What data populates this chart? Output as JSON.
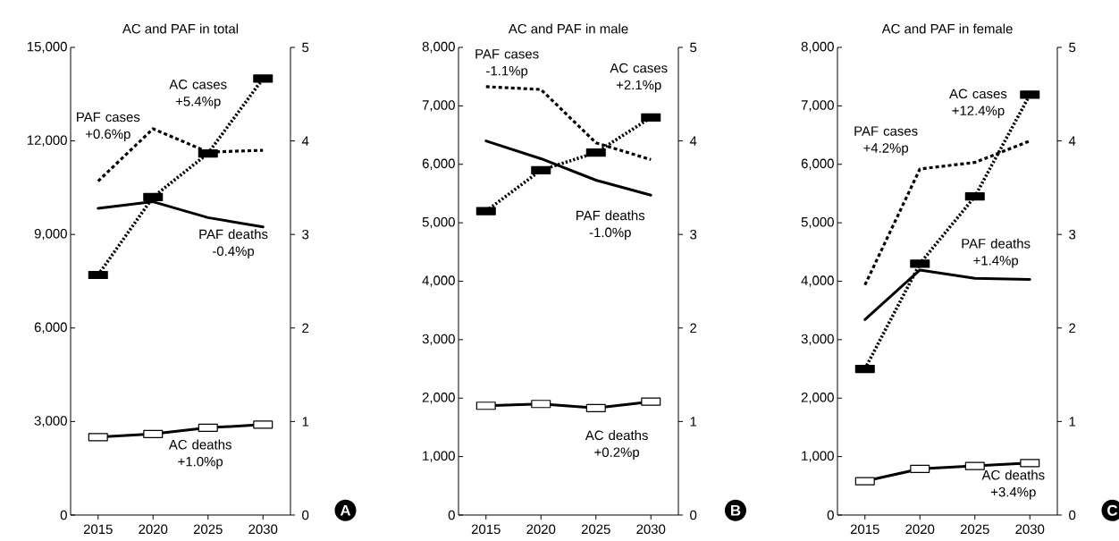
{
  "chart_data": [
    {
      "type": "line",
      "title": "AC and PAF in total",
      "categories": [
        "2015",
        "2020",
        "2025",
        "2030"
      ],
      "ylim": [
        0,
        15000
      ],
      "yticks": [
        {
          "value": 0,
          "label": "0"
        },
        {
          "value": 3000,
          "label": "3,000"
        },
        {
          "value": 6000,
          "label": "6,000"
        },
        {
          "value": 9000,
          "label": "9,000"
        },
        {
          "value": 12000,
          "label": "12,000"
        },
        {
          "value": 15000,
          "label": "15,000"
        }
      ],
      "y2lim": [
        0,
        5
      ],
      "y2ticks": [
        0,
        1,
        2,
        3,
        4,
        5
      ],
      "series": [
        {
          "color": "#000000",
          "values": [
            7700,
            10200,
            11600,
            14000
          ],
          "line_style": "dotted",
          "marker": "square"
        },
        {
          "color": "#000000",
          "values": [
            2500,
            2600,
            2800,
            2900
          ],
          "line_style": "solid",
          "marker": "square"
        },
        {
          "color": "#000000",
          "values": [
            3.57,
            4.13,
            3.88,
            3.9
          ],
          "line_style": "dashed",
          "marker": "none",
          "axis": "y2"
        },
        {
          "color": "#000000",
          "values": [
            3.28,
            3.35,
            3.18,
            3.08
          ],
          "line_style": "solid",
          "marker": "none",
          "axis": "y2"
        }
      ],
      "annotations": [
        "AC cases +5.4%p",
        "PAF cases +0.6%p",
        "PAF deaths -0.4%p",
        "AC deaths +1.0%p",
        "A"
      ]
    },
    {
      "type": "line",
      "title": "AC and PAF in male",
      "categories": [
        "2015",
        "2020",
        "2025",
        "2030"
      ],
      "ylim": [
        0,
        8000
      ],
      "yticks": [
        {
          "value": 0,
          "label": "0"
        },
        {
          "value": 1000,
          "label": "1,000"
        },
        {
          "value": 2000,
          "label": "2,000"
        },
        {
          "value": 3000,
          "label": "3,000"
        },
        {
          "value": 4000,
          "label": "4,000"
        },
        {
          "value": 5000,
          "label": "5,000"
        },
        {
          "value": 6000,
          "label": "6,000"
        },
        {
          "value": 7000,
          "label": "7,000"
        },
        {
          "value": 8000,
          "label": "8,000"
        }
      ],
      "y2lim": [
        0,
        5
      ],
      "y2ticks": [
        0,
        1,
        2,
        3,
        4,
        5
      ],
      "series": [
        {
          "color": "#000000",
          "values": [
            5200,
            5900,
            6200,
            6800
          ],
          "line_style": "dotted",
          "marker": "square"
        },
        {
          "color": "#000000",
          "values": [
            1870,
            1900,
            1830,
            1940
          ],
          "line_style": "solid",
          "marker": "square"
        },
        {
          "color": "#000000",
          "values": [
            4.58,
            4.55,
            3.98,
            3.8
          ],
          "line_style": "dashed",
          "marker": "none",
          "axis": "y2"
        },
        {
          "color": "#000000",
          "values": [
            4.0,
            3.81,
            3.58,
            3.42
          ],
          "line_style": "solid",
          "marker": "none",
          "axis": "y2"
        }
      ],
      "annotations": [
        "PAF cases -1.1%p",
        "AC cases +2.1%p",
        "PAF deaths -1.0%p",
        "AC deaths +0.2%p",
        "B"
      ]
    },
    {
      "type": "line",
      "title": "AC and PAF in female",
      "categories": [
        "2015",
        "2020",
        "2025",
        "2030"
      ],
      "ylim": [
        0,
        8000
      ],
      "yticks": [
        {
          "value": 0,
          "label": "0"
        },
        {
          "value": 1000,
          "label": "1,000"
        },
        {
          "value": 2000,
          "label": "2,000"
        },
        {
          "value": 3000,
          "label": "3,000"
        },
        {
          "value": 4000,
          "label": "4,000"
        },
        {
          "value": 5000,
          "label": "5,000"
        },
        {
          "value": 6000,
          "label": "6,000"
        },
        {
          "value": 7000,
          "label": "7,000"
        },
        {
          "value": 8000,
          "label": "8,000"
        }
      ],
      "y2lim": [
        0,
        5
      ],
      "y2ticks": [
        0,
        1,
        2,
        3,
        4,
        5
      ],
      "series": [
        {
          "color": "#000000",
          "values": [
            2500,
            4300,
            5450,
            7190
          ],
          "line_style": "dotted",
          "marker": "square"
        },
        {
          "color": "#000000",
          "values": [
            580,
            790,
            840,
            890
          ],
          "line_style": "solid",
          "marker": "square"
        },
        {
          "color": "#000000",
          "values": [
            2.46,
            3.7,
            3.77,
            4.0
          ],
          "line_style": "dashed",
          "marker": "none",
          "axis": "y2"
        },
        {
          "color": "#000000",
          "values": [
            2.09,
            2.62,
            2.53,
            2.52
          ],
          "line_style": "solid",
          "marker": "none",
          "axis": "y2"
        }
      ],
      "annotations": [
        "AC cases +12.4%p",
        "PAF cases +4.2%p",
        "PAF deaths +1.4%p",
        "AC deaths +3.4%p",
        "C"
      ]
    }
  ]
}
